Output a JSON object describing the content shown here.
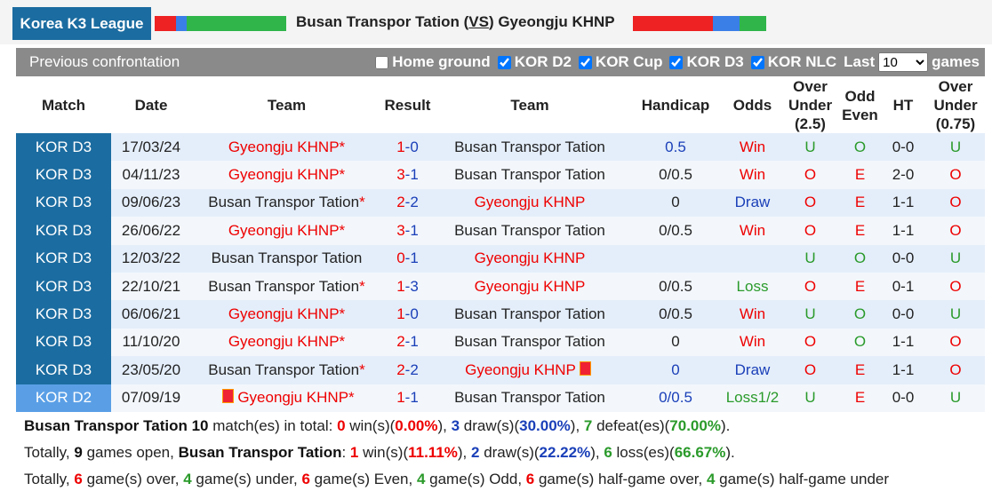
{
  "header": {
    "league": "Korea K3 League",
    "match": [
      "Busan Transpor Tation (",
      "VS",
      ") Gyeongju KHNP"
    ],
    "home": "Busan Transpor Tation",
    "away": "Gyeongju KHNP"
  },
  "filter": {
    "title": "Previous confrontation",
    "options": [
      {
        "label": "Home ground",
        "checked": false
      },
      {
        "label": "KOR D2",
        "checked": true
      },
      {
        "label": "KOR Cup",
        "checked": true
      },
      {
        "label": "KOR D3",
        "checked": true
      },
      {
        "label": "KOR NLC",
        "checked": true
      }
    ],
    "last": "Last",
    "count": "10",
    "games": "games"
  },
  "table": {
    "columns": [
      "Match",
      "Date",
      "Team",
      "Result",
      "Team",
      "Handicap",
      "Odds",
      "Over Under (2.5)",
      "Odd Even",
      "HT",
      "Over Under (0.75)"
    ],
    "rows": [
      {
        "league": "KOR D3",
        "date": "17/03/24",
        "home": "Gyeongju KHNP",
        "home_star": "*",
        "score": "1-0",
        "away": "Busan Transpor Tation",
        "handicap": "0.5",
        "hc_color": "blue",
        "odds": "Win",
        "ou": "U",
        "oe": "O",
        "ht": "0-0",
        "ou2": "U"
      },
      {
        "league": "KOR D3",
        "date": "04/11/23",
        "home": "Gyeongju KHNP",
        "home_star": "*",
        "score": "3-1",
        "away": "Busan Transpor Tation",
        "handicap": "0/0.5",
        "hc_color": "black",
        "odds": "Win",
        "ou": "O",
        "oe": "E",
        "ht": "2-0",
        "ou2": "O"
      },
      {
        "league": "KOR D3",
        "date": "09/06/23",
        "home": "Busan Transpor Tation",
        "home_star": "*",
        "score": "2-2",
        "away": "Gyeongju KHNP",
        "handicap": "0",
        "hc_color": "black",
        "odds": "Draw",
        "ou": "O",
        "oe": "E",
        "ht": "1-1",
        "ou2": "O"
      },
      {
        "league": "KOR D3",
        "date": "26/06/22",
        "home": "Gyeongju KHNP",
        "home_star": "*",
        "score": "3-1",
        "away": "Busan Transpor Tation",
        "handicap": "0/0.5",
        "hc_color": "black",
        "odds": "Win",
        "ou": "O",
        "oe": "E",
        "ht": "1-1",
        "ou2": "O"
      },
      {
        "league": "KOR D3",
        "date": "12/03/22",
        "home": "Busan Transpor Tation",
        "score": "0-1",
        "away": "Gyeongju KHNP",
        "handicap": "",
        "hc_color": "black",
        "odds": "",
        "ou": "U",
        "oe": "O",
        "ht": "0-0",
        "ou2": "U"
      },
      {
        "league": "KOR D3",
        "date": "22/10/21",
        "home": "Busan Transpor Tation",
        "home_star": "*",
        "score": "1-3",
        "away": "Gyeongju KHNP",
        "handicap": "0/0.5",
        "hc_color": "black",
        "odds": "Loss",
        "ou": "O",
        "oe": "E",
        "ht": "0-1",
        "ou2": "O"
      },
      {
        "league": "KOR D3",
        "date": "06/06/21",
        "home": "Gyeongju KHNP",
        "home_star": "*",
        "score": "1-0",
        "away": "Busan Transpor Tation",
        "handicap": "0/0.5",
        "hc_color": "black",
        "odds": "Win",
        "ou": "U",
        "oe": "O",
        "ht": "0-0",
        "ou2": "U"
      },
      {
        "league": "KOR D3",
        "date": "11/10/20",
        "home": "Gyeongju KHNP",
        "home_star": "*",
        "score": "2-1",
        "away": "Busan Transpor Tation",
        "handicap": "0",
        "hc_color": "black",
        "odds": "Win",
        "ou": "O",
        "oe": "O",
        "ht": "1-1",
        "ou2": "O"
      },
      {
        "league": "KOR D3",
        "date": "23/05/20",
        "home": "Busan Transpor Tation",
        "home_star": "*",
        "score": "2-2",
        "away": "Gyeongju KHNP",
        "away_flag": true,
        "handicap": "0",
        "hc_color": "blue",
        "odds": "Draw",
        "ou": "O",
        "oe": "E",
        "ht": "1-1",
        "ou2": "O"
      },
      {
        "league": "KOR D2",
        "date": "07/09/19",
        "home": "Gyeongju KHNP",
        "home_flag": true,
        "home_star": "*",
        "score": "1-1",
        "away": "Busan Transpor Tation",
        "handicap": "0/0.5",
        "hc_color": "blue",
        "odds": "Loss1/2",
        "ou": "U",
        "oe": "E",
        "ht": "0-0",
        "ou2": "U"
      }
    ]
  },
  "summary": [
    [
      {
        "t": "Busan Transpor Tation 10",
        "c": "k"
      },
      {
        "t": " match(es) in total: "
      },
      {
        "t": "0",
        "c": "r"
      },
      {
        "t": " win(s)("
      },
      {
        "t": "0.00%",
        "c": "r"
      },
      {
        "t": "), "
      },
      {
        "t": "3",
        "c": "b"
      },
      {
        "t": " draw(s)("
      },
      {
        "t": "30.00%",
        "c": "b"
      },
      {
        "t": "), "
      },
      {
        "t": "7",
        "c": "g"
      },
      {
        "t": " defeat(es)("
      },
      {
        "t": "70.00%",
        "c": "g"
      },
      {
        "t": ")."
      }
    ],
    [
      {
        "t": "Totally, "
      },
      {
        "t": "9",
        "c": "k"
      },
      {
        "t": " games open, "
      },
      {
        "t": "Busan Transpor Tation",
        "c": "k"
      },
      {
        "t": ": "
      },
      {
        "t": "1",
        "c": "r"
      },
      {
        "t": " win(s)("
      },
      {
        "t": "11.11%",
        "c": "r"
      },
      {
        "t": "), "
      },
      {
        "t": "2",
        "c": "b"
      },
      {
        "t": " draw(s)("
      },
      {
        "t": "22.22%",
        "c": "b"
      },
      {
        "t": "), "
      },
      {
        "t": "6",
        "c": "g"
      },
      {
        "t": " loss(es)("
      },
      {
        "t": "66.67%",
        "c": "g"
      },
      {
        "t": ")."
      }
    ],
    [
      {
        "t": "Totally, "
      },
      {
        "t": "6",
        "c": "r"
      },
      {
        "t": " game(s) over, "
      },
      {
        "t": "4",
        "c": "g"
      },
      {
        "t": " game(s) under, "
      },
      {
        "t": "6",
        "c": "r"
      },
      {
        "t": " game(s) Even, "
      },
      {
        "t": "4",
        "c": "g"
      },
      {
        "t": " game(s) Odd, "
      },
      {
        "t": "6",
        "c": "r"
      },
      {
        "t": " game(s) half-game over, "
      },
      {
        "t": "4",
        "c": "g"
      },
      {
        "t": " game(s) half-game under"
      }
    ]
  ]
}
